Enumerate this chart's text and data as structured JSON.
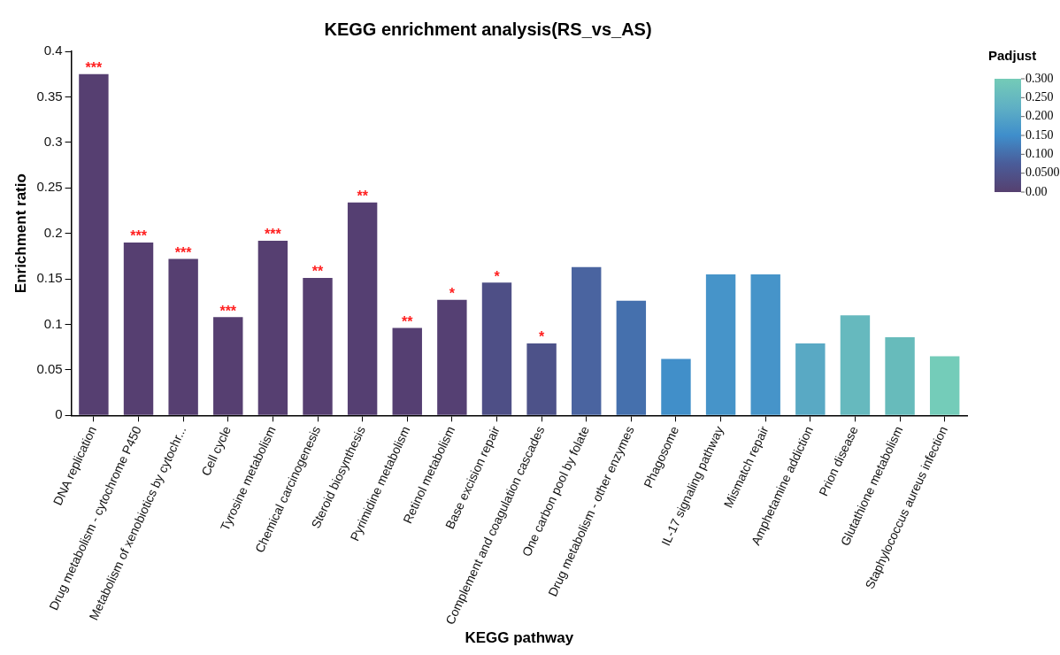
{
  "chart_data": {
    "type": "bar",
    "title": "KEGG enrichment analysis(RS_vs_AS)",
    "xlabel": "KEGG pathway",
    "ylabel": "Enrichment ratio",
    "clabel": "Padjust",
    "categories": [
      "DNA replication",
      "Drug metabolism - cytochrome P450",
      "Metabolism of xenobiotics by cytochr...",
      "Cell cycle",
      "Tyrosine metabolism",
      "Chemical carcinogenesis",
      "Steroid biosynthesis",
      "Pyrimidine metabolism",
      "Retinol metabolism",
      "Base excision repair",
      "Complement and coagulation cascades",
      "One carbon pool by folate",
      "Drug metabolism - other enzymes",
      "Phagosome",
      "IL-17 signaling pathway",
      "Mismatch repair",
      "Amphetamine addiction",
      "Prion disease",
      "Glutathione metabolism",
      "Staphylococcus aureus infection"
    ],
    "values": [
      0.375,
      0.19,
      0.172,
      0.108,
      0.192,
      0.151,
      0.234,
      0.096,
      0.127,
      0.146,
      0.079,
      0.163,
      0.126,
      0.062,
      0.155,
      0.155,
      0.079,
      0.11,
      0.086,
      0.065
    ],
    "colors": [
      "#563f71",
      "#563f71",
      "#563f71",
      "#563f71",
      "#563f71",
      "#563f71",
      "#553f72",
      "#553f72",
      "#554073",
      "#4e4f86",
      "#4d5289",
      "#4a64a0",
      "#4570ad",
      "#418fc9",
      "#4694c9",
      "#4694c9",
      "#59a9c4",
      "#66b9be",
      "#67bbbb",
      "#74ccb9"
    ],
    "ylim": [
      0,
      0.4
    ],
    "yticks": [
      0,
      0.05,
      0.1,
      0.15,
      0.2,
      0.25,
      0.3,
      0.35,
      0.4
    ],
    "clim": [
      0,
      0.3
    ],
    "cticks": [
      {
        "value": 0,
        "label": "0.00"
      },
      {
        "value": 0.05,
        "label": "0.0500"
      },
      {
        "value": 0.1,
        "label": "0.100"
      },
      {
        "value": 0.15,
        "label": "0.150"
      },
      {
        "value": 0.2,
        "label": "0.200"
      },
      {
        "value": 0.25,
        "label": "0.250"
      },
      {
        "value": 0.3,
        "label": "0.300"
      }
    ],
    "annotations": [
      {
        "text": "***",
        "x": "DNA replication",
        "y": 0.375
      },
      {
        "text": "***",
        "x": "Drug metabolism - cytochrome P450",
        "y": 0.19
      },
      {
        "text": "***",
        "x": "Metabolism of xenobiotics by cytochr...",
        "y": 0.172
      },
      {
        "text": "***",
        "x": "Cell cycle",
        "y": 0.108
      },
      {
        "text": "***",
        "x": "Tyrosine metabolism",
        "y": 0.192
      },
      {
        "text": "**",
        "x": "Chemical carcinogenesis",
        "y": 0.151
      },
      {
        "text": "**",
        "x": "Steroid biosynthesis",
        "y": 0.234
      },
      {
        "text": "**",
        "x": "Pyrimidine metabolism",
        "y": 0.096
      },
      {
        "text": "*",
        "x": "Retinol metabolism",
        "y": 0.127
      },
      {
        "text": "*",
        "x": "Base excision repair",
        "y": 0.146
      },
      {
        "text": "*",
        "x": "Complement and coagulation cascades",
        "y": 0.079
      }
    ],
    "grid": false,
    "legend": false
  }
}
